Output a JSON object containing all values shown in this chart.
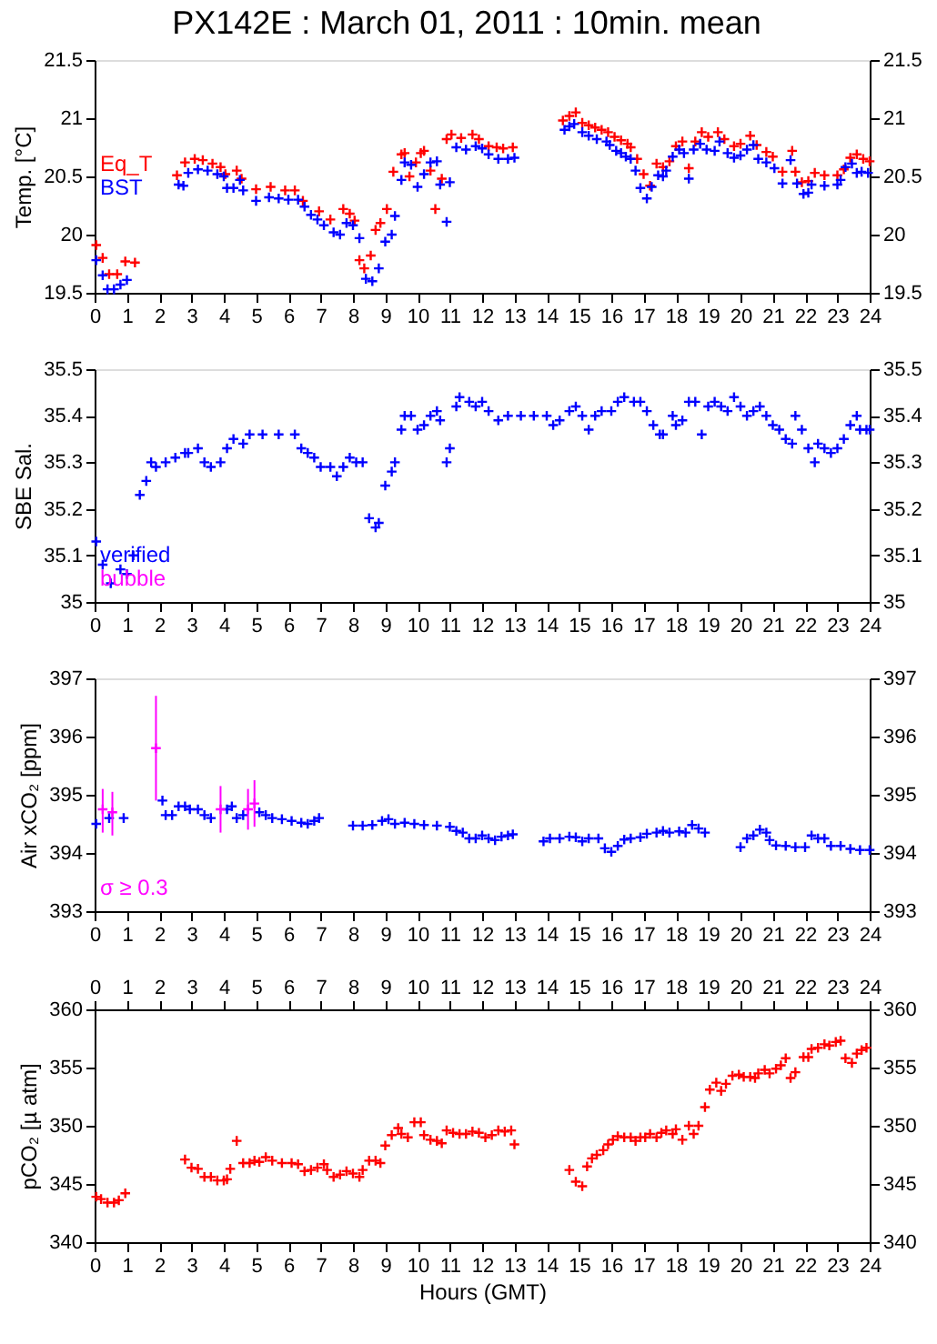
{
  "chart_data": [
    {
      "type": "scatter",
      "title": "PX142E : March 01, 2011 : 10min. mean",
      "ylabel": "Temp. [°C]",
      "marker": "cross",
      "legend": "left",
      "xlim": [
        0,
        24
      ],
      "xticks": [
        0,
        1,
        2,
        3,
        4,
        5,
        6,
        7,
        8,
        9,
        10,
        11,
        12,
        13,
        14,
        15,
        16,
        17,
        18,
        19,
        20,
        21,
        22,
        23,
        24
      ],
      "ylim": [
        19.5,
        21.5
      ],
      "yticks": [
        19.5,
        20,
        20.5,
        21,
        21.5
      ],
      "y2lim": [
        19.5,
        21.5
      ],
      "y2ticks": [
        19.5,
        20,
        20.5,
        21,
        21.5
      ],
      "series": [
        {
          "name": "Eq_T",
          "color": "#ff0000",
          "x": [
            0.05,
            0.25,
            0.45,
            0.7,
            0.95,
            1.25,
            2.55,
            2.8,
            3.1,
            3.35,
            3.65,
            3.9,
            4.05,
            4.4,
            4.55,
            5.0,
            5.45,
            5.9,
            6.2,
            6.45,
            6.95,
            7.3,
            7.7,
            7.9,
            8.05,
            8.2,
            8.35,
            8.55,
            8.7,
            8.85,
            9.05,
            9.25,
            9.5,
            9.6,
            9.75,
            9.95,
            10.1,
            10.2,
            10.4,
            10.55,
            10.75,
            10.9,
            11.05,
            11.35,
            11.7,
            11.9,
            12.2,
            12.45,
            12.65,
            12.95,
            14.5,
            14.7,
            14.9,
            15.1,
            15.3,
            15.5,
            15.7,
            15.9,
            16.1,
            16.3,
            16.5,
            16.6,
            16.8,
            17.0,
            17.2,
            17.4,
            17.6,
            17.8,
            18.0,
            18.2,
            18.4,
            18.6,
            18.8,
            19.0,
            19.3,
            19.5,
            19.8,
            20.0,
            20.3,
            20.5,
            20.8,
            21.0,
            21.3,
            21.6,
            21.7,
            21.9,
            22.1,
            22.3,
            22.6,
            23.0,
            23.2,
            23.4,
            23.6,
            23.8,
            24.0
          ],
          "values": [
            19.91,
            19.8,
            19.66,
            19.66,
            19.77,
            19.76,
            20.51,
            20.62,
            20.65,
            20.64,
            20.61,
            20.58,
            20.52,
            20.55,
            20.48,
            20.39,
            20.41,
            20.38,
            20.38,
            20.29,
            20.2,
            20.13,
            20.22,
            20.18,
            20.12,
            19.78,
            19.71,
            19.82,
            20.04,
            20.1,
            20.22,
            20.54,
            20.69,
            20.7,
            20.5,
            20.62,
            20.7,
            20.72,
            20.55,
            20.22,
            20.48,
            20.82,
            20.86,
            20.83,
            20.86,
            20.82,
            20.76,
            20.75,
            20.74,
            20.75,
            20.98,
            21.02,
            21.05,
            20.96,
            20.94,
            20.92,
            20.9,
            20.88,
            20.84,
            20.81,
            20.78,
            20.75,
            20.65,
            20.52,
            20.42,
            20.61,
            20.58,
            20.63,
            20.76,
            20.8,
            20.57,
            20.8,
            20.88,
            20.84,
            20.88,
            20.82,
            20.76,
            20.78,
            20.85,
            20.77,
            20.71,
            20.67,
            20.54,
            20.72,
            20.54,
            20.45,
            20.46,
            20.53,
            20.51,
            20.51,
            20.56,
            20.66,
            20.69,
            20.65,
            20.63
          ]
        },
        {
          "name": "BST",
          "color": "#0000ff",
          "x": [
            0.05,
            0.25,
            0.4,
            0.6,
            0.8,
            1.0,
            2.6,
            2.75,
            2.9,
            3.2,
            3.5,
            3.8,
            4.0,
            4.1,
            4.3,
            4.5,
            4.6,
            5.0,
            5.4,
            5.7,
            6.0,
            6.3,
            6.5,
            6.7,
            6.9,
            7.1,
            7.4,
            7.6,
            7.8,
            8.0,
            8.2,
            8.4,
            8.6,
            8.8,
            9.0,
            9.2,
            9.3,
            9.5,
            9.6,
            9.8,
            10.0,
            10.2,
            10.4,
            10.6,
            10.7,
            10.9,
            11.0,
            11.2,
            11.5,
            11.8,
            12.0,
            12.2,
            12.5,
            12.8,
            13.0,
            14.55,
            14.7,
            14.85,
            15.1,
            15.3,
            15.55,
            15.85,
            15.95,
            16.15,
            16.3,
            16.45,
            16.6,
            16.75,
            16.9,
            17.1,
            17.25,
            17.45,
            17.6,
            17.7,
            17.9,
            18.1,
            18.25,
            18.4,
            18.55,
            18.75,
            18.95,
            19.2,
            19.35,
            19.6,
            19.8,
            20.0,
            20.2,
            20.4,
            20.55,
            20.8,
            21.05,
            21.3,
            21.55,
            21.75,
            21.95,
            22.1,
            22.2,
            22.6,
            23.0,
            23.1,
            23.25,
            23.45,
            23.6,
            23.75,
            23.95
          ],
          "values": [
            19.78,
            19.65,
            19.53,
            19.53,
            19.57,
            19.61,
            20.43,
            20.42,
            20.53,
            20.56,
            20.55,
            20.52,
            20.5,
            20.4,
            20.4,
            20.47,
            20.38,
            20.29,
            20.32,
            20.31,
            20.3,
            20.3,
            20.24,
            20.17,
            20.13,
            20.08,
            20.02,
            20.0,
            20.1,
            20.08,
            19.97,
            19.62,
            19.6,
            19.71,
            19.94,
            20.0,
            20.16,
            20.47,
            20.62,
            20.6,
            20.41,
            20.52,
            20.62,
            20.63,
            20.43,
            20.11,
            20.45,
            20.75,
            20.73,
            20.76,
            20.74,
            20.69,
            20.65,
            20.65,
            20.66,
            20.9,
            20.93,
            20.95,
            20.88,
            20.85,
            20.82,
            20.8,
            20.77,
            20.72,
            20.7,
            20.67,
            20.65,
            20.55,
            20.4,
            20.31,
            20.41,
            20.51,
            20.5,
            20.55,
            20.67,
            20.73,
            20.7,
            20.48,
            20.73,
            20.78,
            20.73,
            20.72,
            20.8,
            20.7,
            20.66,
            20.68,
            20.73,
            20.77,
            20.65,
            20.62,
            20.57,
            20.44,
            20.64,
            20.44,
            20.35,
            20.36,
            20.43,
            20.42,
            20.43,
            20.47,
            20.58,
            20.61,
            20.53,
            20.54,
            20.53
          ]
        }
      ]
    },
    {
      "type": "scatter",
      "ylabel": "SBE Sal.",
      "marker": "cross",
      "legend": "bottom left",
      "xlim": [
        0,
        24
      ],
      "xticks": [
        0,
        1,
        2,
        3,
        4,
        5,
        6,
        7,
        8,
        9,
        10,
        11,
        12,
        13,
        14,
        15,
        16,
        17,
        18,
        19,
        20,
        21,
        22,
        23,
        24
      ],
      "ylim": [
        35,
        35.5
      ],
      "yticks": [
        35,
        35.1,
        35.2,
        35.3,
        35.4,
        35.5
      ],
      "y2lim": [
        35,
        35.5
      ],
      "y2ticks": [
        35,
        35.1,
        35.2,
        35.3,
        35.4,
        35.5
      ],
      "series": [
        {
          "name": "verified",
          "color": "#0000ff",
          "x": [
            0.05,
            0.25,
            0.5,
            0.8,
            1.0,
            1.2,
            1.4,
            1.6,
            1.75,
            1.9,
            2.2,
            2.5,
            2.8,
            2.9,
            3.2,
            3.4,
            3.6,
            3.9,
            4.1,
            4.3,
            4.6,
            4.8,
            5.2,
            5.7,
            6.2,
            6.4,
            6.6,
            6.8,
            7.0,
            7.3,
            7.5,
            7.7,
            7.9,
            8.1,
            8.3,
            8.5,
            8.7,
            8.8,
            9.0,
            9.2,
            9.3,
            9.5,
            9.6,
            9.8,
            10.0,
            10.2,
            10.4,
            10.6,
            10.7,
            10.9,
            11.0,
            11.2,
            11.3,
            11.6,
            11.8,
            12.0,
            12.2,
            12.5,
            12.8,
            13.2,
            13.6,
            14.0,
            14.2,
            14.4,
            14.7,
            14.9,
            15.1,
            15.3,
            15.5,
            15.7,
            16.0,
            16.2,
            16.4,
            16.7,
            16.9,
            17.1,
            17.3,
            17.5,
            17.6,
            17.9,
            18.0,
            18.2,
            18.4,
            18.6,
            18.8,
            19.0,
            19.2,
            19.4,
            19.6,
            19.8,
            20.0,
            20.2,
            20.4,
            20.6,
            20.8,
            21.0,
            21.2,
            21.4,
            21.6,
            21.7,
            21.9,
            22.1,
            22.3,
            22.4,
            22.6,
            22.8,
            23.0,
            23.2,
            23.4,
            23.6,
            23.7,
            23.9,
            24.0
          ],
          "values": [
            35.13,
            35.08,
            35.04,
            35.07,
            35.06,
            35.1,
            35.23,
            35.26,
            35.3,
            35.29,
            35.3,
            35.31,
            35.32,
            35.32,
            35.33,
            35.3,
            35.29,
            35.3,
            35.33,
            35.35,
            35.34,
            35.36,
            35.36,
            35.36,
            35.36,
            35.33,
            35.32,
            35.31,
            35.29,
            35.29,
            35.27,
            35.29,
            35.31,
            35.3,
            35.3,
            35.18,
            35.16,
            35.17,
            35.25,
            35.28,
            35.3,
            35.37,
            35.4,
            35.4,
            35.37,
            35.38,
            35.4,
            35.41,
            35.39,
            35.3,
            35.33,
            35.42,
            35.44,
            35.43,
            35.42,
            35.43,
            35.41,
            35.39,
            35.4,
            35.4,
            35.4,
            35.4,
            35.38,
            35.39,
            35.41,
            35.42,
            35.4,
            35.37,
            35.4,
            35.41,
            35.41,
            35.43,
            35.44,
            35.43,
            35.43,
            35.41,
            35.38,
            35.36,
            35.36,
            35.4,
            35.38,
            35.39,
            35.43,
            35.43,
            35.36,
            35.42,
            35.43,
            35.42,
            35.41,
            35.44,
            35.42,
            35.4,
            35.41,
            35.42,
            35.4,
            35.38,
            35.37,
            35.35,
            35.34,
            35.4,
            35.37,
            35.33,
            35.3,
            35.34,
            35.33,
            35.32,
            35.33,
            35.35,
            35.38,
            35.4,
            35.37,
            35.37,
            35.37
          ]
        },
        {
          "name": "bubble",
          "color": "#ff00ff"
        }
      ]
    },
    {
      "type": "scatter",
      "ylabel": "Air xCO₂ [ppm]",
      "marker": "cross",
      "legend": "bottom left",
      "xlim": [
        0,
        24
      ],
      "xticks": [
        0,
        1,
        2,
        3,
        4,
        5,
        6,
        7,
        8,
        9,
        10,
        11,
        12,
        13,
        14,
        15,
        16,
        17,
        18,
        19,
        20,
        21,
        22,
        23,
        24
      ],
      "ylim": [
        393,
        397
      ],
      "yticks": [
        393,
        394,
        395,
        396,
        397
      ],
      "y2lim": [
        393,
        397
      ],
      "y2ticks": [
        393,
        394,
        395,
        396,
        397
      ],
      "series": [
        {
          "color": "#0000ff",
          "x": [
            0.05,
            0.45,
            0.9,
            2.1,
            2.2,
            2.4,
            2.6,
            2.8,
            2.95,
            3.2,
            3.4,
            3.6,
            4.1,
            4.25,
            4.4,
            4.6,
            5.1,
            5.3,
            5.5,
            5.8,
            6.1,
            6.4,
            6.6,
            6.8,
            6.95,
            8.0,
            8.3,
            8.6,
            8.9,
            9.1,
            9.3,
            9.6,
            9.9,
            10.2,
            10.6,
            11.0,
            11.2,
            11.4,
            11.6,
            11.8,
            12.0,
            12.2,
            12.4,
            12.6,
            12.8,
            12.95,
            13.9,
            14.1,
            14.4,
            14.7,
            14.9,
            15.1,
            15.3,
            15.6,
            15.8,
            16.0,
            16.2,
            16.4,
            16.6,
            16.9,
            17.1,
            17.4,
            17.6,
            17.8,
            18.1,
            18.3,
            18.5,
            18.7,
            18.9,
            20.0,
            20.2,
            20.4,
            20.6,
            20.8,
            20.9,
            21.1,
            21.4,
            21.7,
            22.0,
            22.2,
            22.4,
            22.6,
            22.8,
            23.1,
            23.4,
            23.7,
            24.0
          ],
          "values": [
            394.5,
            394.6,
            394.6,
            394.9,
            394.65,
            394.65,
            394.8,
            394.8,
            394.75,
            394.75,
            394.65,
            394.6,
            394.75,
            394.8,
            394.6,
            394.65,
            394.7,
            394.65,
            394.6,
            394.58,
            394.55,
            394.52,
            394.5,
            394.55,
            394.6,
            394.47,
            394.47,
            394.48,
            394.55,
            394.58,
            394.5,
            394.52,
            394.5,
            394.48,
            394.47,
            394.45,
            394.38,
            394.35,
            394.25,
            394.25,
            394.3,
            394.25,
            394.22,
            394.28,
            394.3,
            394.32,
            394.2,
            394.25,
            394.25,
            394.28,
            394.27,
            394.2,
            394.25,
            394.25,
            394.08,
            394.02,
            394.12,
            394.23,
            394.25,
            394.27,
            394.33,
            394.35,
            394.38,
            394.35,
            394.37,
            394.35,
            394.48,
            394.42,
            394.35,
            394.1,
            394.25,
            394.3,
            394.4,
            394.35,
            394.22,
            394.13,
            394.12,
            394.1,
            394.1,
            394.3,
            394.25,
            394.25,
            394.12,
            394.12,
            394.07,
            394.05,
            394.05
          ]
        },
        {
          "name": "σ ≥ 0.3",
          "color": "#ff00ff",
          "x": [
            0.25,
            0.55,
            1.9,
            3.9,
            4.75,
            4.95
          ],
          "values": [
            394.75,
            394.7,
            395.8,
            394.75,
            394.75,
            394.85
          ],
          "errors": [
            [
              394.35,
              395.1
            ],
            [
              394.3,
              395.05
            ],
            [
              394.9,
              396.7
            ],
            [
              394.35,
              395.15
            ],
            [
              394.4,
              395.1
            ],
            [
              394.45,
              395.25
            ]
          ]
        }
      ]
    },
    {
      "type": "scatter",
      "ylabel": "pCO₂ [µ atm]",
      "xlabel": "Hours (GMT)",
      "marker": "cross",
      "xlim": [
        0,
        24
      ],
      "xticks": [
        0,
        1,
        2,
        3,
        4,
        5,
        6,
        7,
        8,
        9,
        10,
        11,
        12,
        13,
        14,
        15,
        16,
        17,
        18,
        19,
        20,
        21,
        22,
        23,
        24
      ],
      "x2lim": [
        0,
        24
      ],
      "x2ticks": [
        0,
        1,
        2,
        3,
        4,
        5,
        6,
        7,
        8,
        9,
        10,
        11,
        12,
        13,
        14,
        15,
        16,
        17,
        18,
        19,
        20,
        21,
        22,
        23,
        24
      ],
      "ylim": [
        340,
        360
      ],
      "yticks": [
        340,
        345,
        350,
        355,
        360
      ],
      "y2lim": [
        340,
        360
      ],
      "y2ticks": [
        340,
        345,
        350,
        355,
        360
      ],
      "series": [
        {
          "color": "#ff0000",
          "x": [
            0.05,
            0.2,
            0.4,
            0.6,
            0.75,
            0.95,
            2.8,
            3.0,
            3.2,
            3.4,
            3.6,
            3.8,
            4.0,
            4.1,
            4.2,
            4.4,
            4.6,
            4.8,
            4.95,
            5.1,
            5.3,
            5.5,
            5.8,
            6.1,
            6.3,
            6.5,
            6.7,
            6.9,
            7.1,
            7.2,
            7.4,
            7.6,
            7.8,
            8.0,
            8.2,
            8.3,
            8.5,
            8.7,
            8.85,
            9.0,
            9.2,
            9.4,
            9.5,
            9.7,
            9.9,
            10.1,
            10.2,
            10.4,
            10.6,
            10.75,
            10.9,
            11.1,
            11.3,
            11.5,
            11.7,
            11.9,
            12.1,
            12.3,
            12.5,
            12.7,
            12.9,
            13.0,
            14.7,
            14.9,
            15.1,
            15.25,
            15.4,
            15.55,
            15.75,
            15.9,
            16.05,
            16.2,
            16.4,
            16.6,
            16.75,
            16.9,
            17.05,
            17.2,
            17.4,
            17.55,
            17.7,
            17.9,
            18.0,
            18.2,
            18.4,
            18.55,
            18.7,
            18.9,
            19.05,
            19.25,
            19.4,
            19.55,
            19.75,
            19.95,
            20.1,
            20.3,
            20.45,
            20.55,
            20.75,
            20.9,
            21.1,
            21.25,
            21.4,
            21.55,
            21.7,
            21.95,
            22.1,
            22.2,
            22.4,
            22.6,
            22.75,
            22.95,
            23.1,
            23.25,
            23.45,
            23.6,
            23.75,
            23.9
          ],
          "values": [
            343.9,
            343.7,
            343.4,
            343.4,
            343.6,
            344.2,
            347.1,
            346.4,
            346.3,
            345.6,
            345.6,
            345.3,
            345.3,
            345.4,
            346.3,
            348.7,
            346.8,
            346.8,
            347.0,
            346.9,
            347.3,
            347.0,
            346.8,
            346.8,
            346.7,
            346.1,
            346.2,
            346.4,
            346.7,
            346.2,
            345.6,
            345.8,
            346.1,
            345.9,
            345.6,
            346.2,
            347.0,
            347.0,
            346.8,
            348.3,
            349.2,
            349.8,
            349.3,
            349.0,
            350.3,
            350.3,
            349.2,
            348.8,
            348.7,
            348.5,
            349.6,
            349.4,
            349.3,
            349.3,
            349.5,
            349.4,
            349.0,
            349.2,
            349.6,
            349.5,
            349.6,
            348.4,
            346.2,
            345.2,
            344.8,
            346.5,
            347.2,
            347.5,
            347.9,
            348.4,
            348.8,
            349.1,
            349.0,
            349.0,
            348.7,
            349.0,
            349.0,
            349.3,
            349.0,
            349.4,
            349.6,
            349.3,
            349.7,
            348.8,
            350.0,
            349.3,
            350.0,
            351.6,
            353.1,
            353.7,
            353.0,
            353.6,
            354.3,
            354.4,
            354.2,
            354.2,
            354.1,
            354.5,
            354.8,
            354.5,
            354.9,
            355.2,
            355.8,
            354.1,
            354.6,
            355.9,
            355.9,
            356.6,
            356.7,
            357.0,
            356.9,
            357.2,
            357.3,
            355.8,
            355.4,
            356.2,
            356.5,
            356.7
          ]
        }
      ]
    }
  ]
}
